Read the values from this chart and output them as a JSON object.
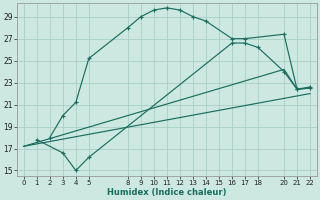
{
  "xlabel": "Humidex (Indice chaleur)",
  "background_color": "#cce8e0",
  "grid_color": "#a8cfc8",
  "line_color": "#1a6e60",
  "xlim": [
    -0.5,
    22.5
  ],
  "ylim": [
    14.5,
    30.2
  ],
  "xticks": [
    0,
    1,
    2,
    3,
    4,
    5,
    8,
    9,
    10,
    11,
    12,
    13,
    14,
    15,
    16,
    17,
    18,
    20,
    21,
    22
  ],
  "yticks": [
    15,
    17,
    19,
    21,
    23,
    25,
    27,
    29
  ],
  "series": [
    {
      "x": [
        2,
        3,
        4,
        5,
        8,
        9,
        10,
        11,
        12,
        13,
        14,
        16,
        17,
        20,
        21,
        22
      ],
      "y": [
        18.0,
        20.0,
        21.2,
        25.2,
        28.0,
        29.0,
        29.6,
        29.8,
        29.6,
        29.0,
        28.6,
        27.0,
        27.0,
        27.4,
        22.4,
        22.5
      ],
      "marker": true
    },
    {
      "x": [
        1,
        3,
        4,
        5,
        16,
        17,
        18,
        20,
        21,
        22
      ],
      "y": [
        17.8,
        16.6,
        15.0,
        16.2,
        26.6,
        26.6,
        26.2,
        24.0,
        22.4,
        22.6
      ],
      "marker": true
    },
    {
      "x": [
        0,
        20,
        21,
        22
      ],
      "y": [
        17.2,
        24.2,
        22.4,
        22.5
      ],
      "marker": false
    },
    {
      "x": [
        0,
        22
      ],
      "y": [
        17.2,
        22.0
      ],
      "marker": false
    }
  ]
}
